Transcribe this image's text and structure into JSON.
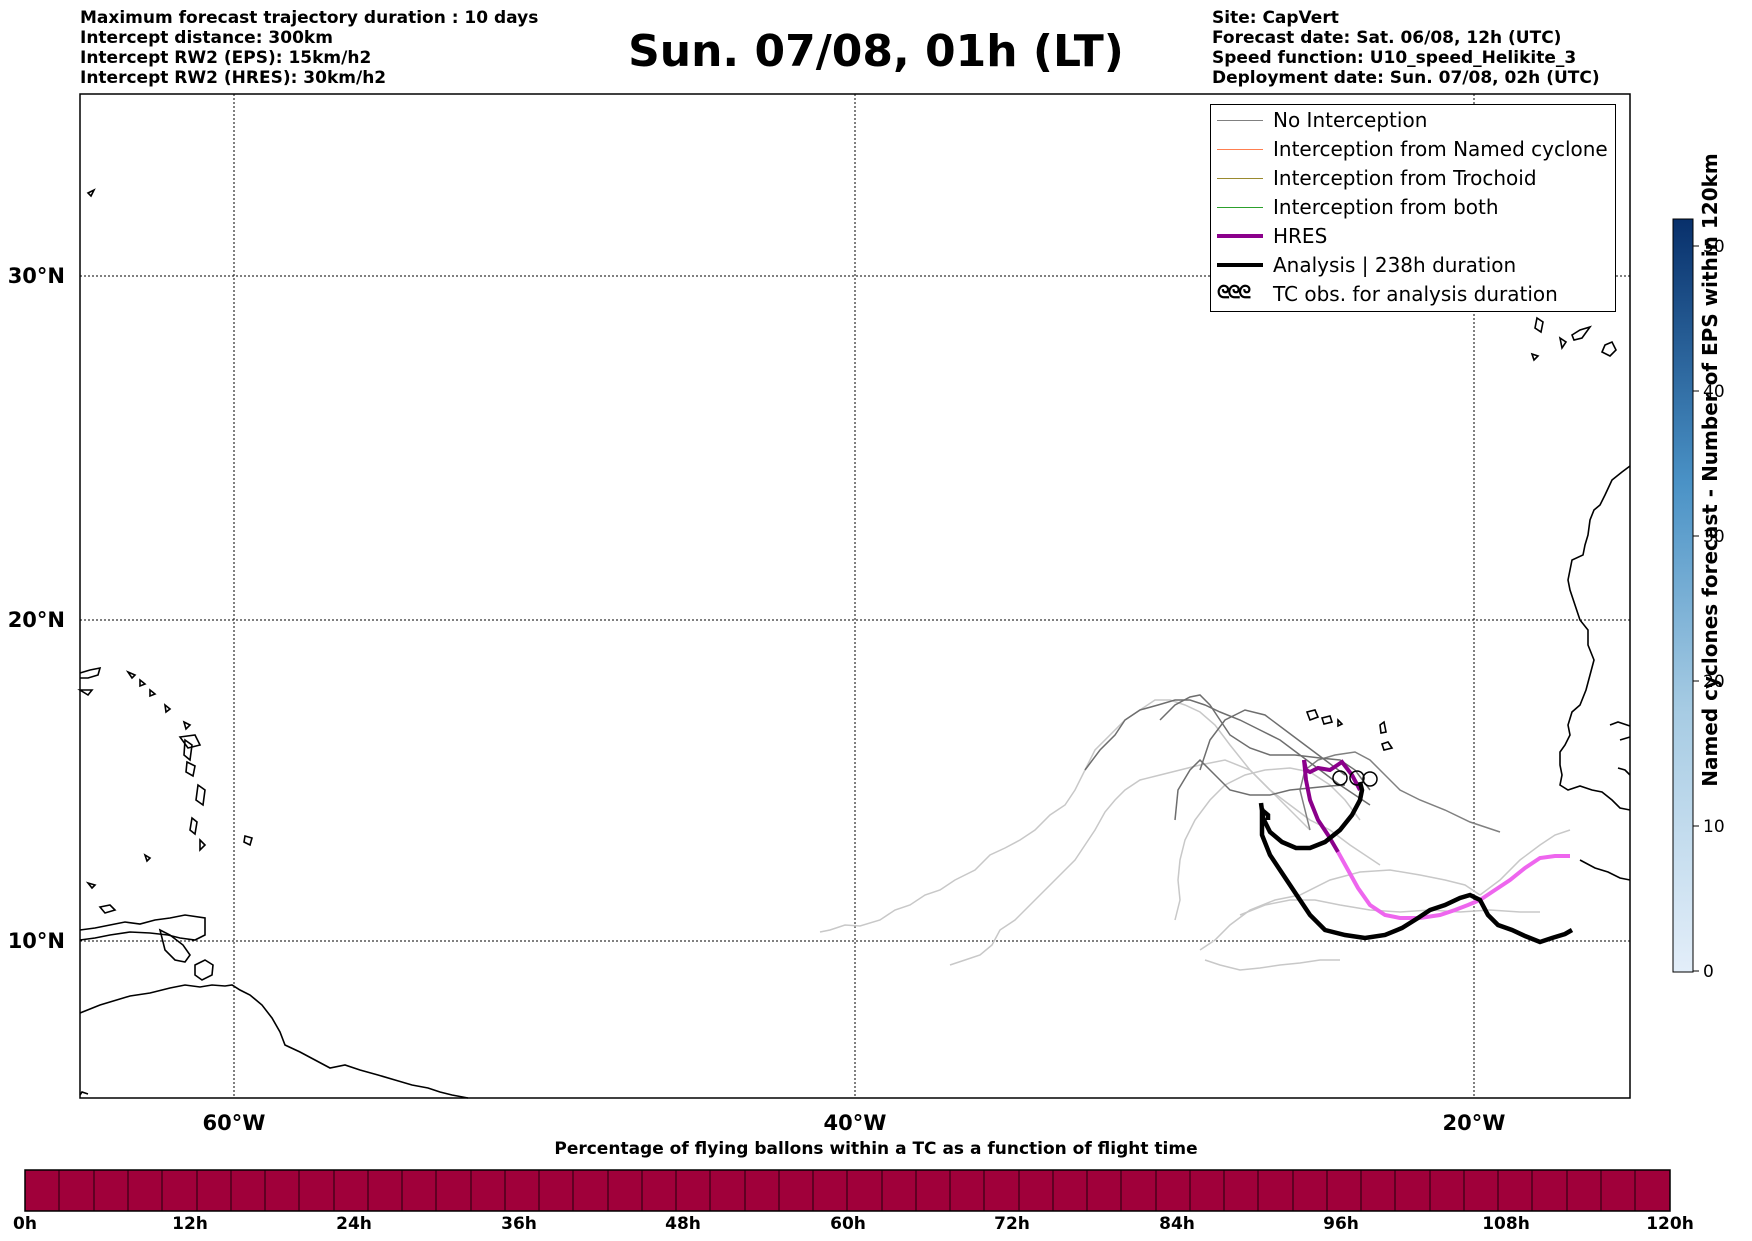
{
  "header": {
    "left_lines": [
      "Maximum forecast trajectory duration : 10 days",
      "Intercept distance: 300km",
      "Intercept RW2 (EPS):  15km/h2",
      "Intercept RW2 (HRES): 30km/h2"
    ],
    "title": "Sun. 07/08, 01h (LT)",
    "right_lines": [
      "Site: CapVert",
      "Forecast date: Sat. 06/08, 12h (UTC)",
      "Speed function: U10_speed_Helikite_3",
      "Deployment date: Sun. 07/08, 02h (UTC)"
    ]
  },
  "map": {
    "lat_ticks": [
      "30°N",
      "20°N",
      "10°N"
    ],
    "lon_ticks": [
      "60°W",
      "40°W",
      "20°W"
    ],
    "grid_style": "dotted"
  },
  "legend": {
    "items": [
      {
        "label": "No Interception",
        "color": "#808080"
      },
      {
        "label": "Interception from Named cyclone",
        "color": "#ff7f50"
      },
      {
        "label": "Interception from Trochoid",
        "color": "#9a8a2e"
      },
      {
        "label": "Interception from both",
        "color": "#2ca02c"
      },
      {
        "label": "HRES",
        "color": "#8b008b"
      },
      {
        "label": "Analysis | 238h duration",
        "color": "#000000"
      },
      {
        "label": "TC obs. for analysis duration",
        "color": "#000000",
        "symbol": "ᘓᘓᘓ"
      }
    ]
  },
  "colorbar_right": {
    "label": "Named cyclones forecast - Number of EPS within 120km",
    "ticks": [
      "0",
      "10",
      "20",
      "30",
      "40",
      "50"
    ],
    "color_low": "#e3eef9",
    "color_high": "#08306b"
  },
  "colorbar_bottom": {
    "title": "Percentage of flying ballons within a TC as a function of flight time",
    "ticks": [
      "0h",
      "12h",
      "24h",
      "36h",
      "48h",
      "60h",
      "72h",
      "84h",
      "96h",
      "108h",
      "120h"
    ],
    "fill_color": "#a0003a"
  },
  "colors": {
    "hres_late": "#ee66ee",
    "trajectory_light": "#c8c8c8",
    "trajectory_dark": "#6e6e6e"
  }
}
